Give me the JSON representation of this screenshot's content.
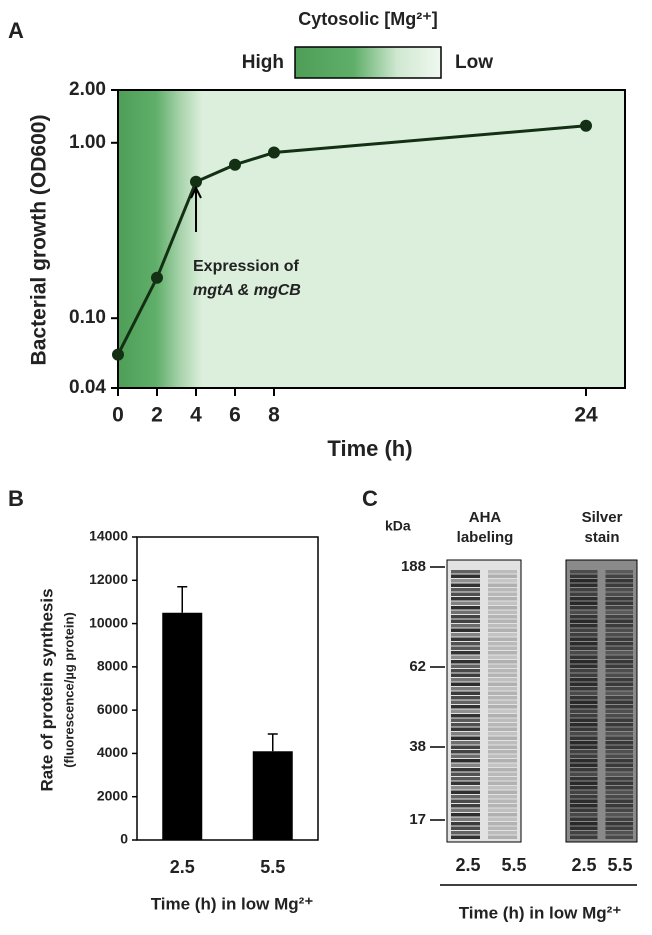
{
  "panel_labels": [
    "A",
    "B",
    "C"
  ],
  "chart_data": [
    {
      "type": "line",
      "title": "Cytosolic [Mg²⁺]",
      "legend_high": "High",
      "legend_low": "Low",
      "xlabel": "Time (h)",
      "ylabel": "Bacterial growth (OD600)",
      "x": [
        0,
        2,
        4,
        6,
        8,
        24
      ],
      "series": [
        {
          "color": "#143014",
          "values": [
            0.062,
            0.17,
            0.6,
            0.75,
            0.88,
            1.25
          ]
        }
      ],
      "xlim": [
        0,
        26
      ],
      "xticks": [
        0,
        2,
        4,
        6,
        8,
        24
      ],
      "ylim": [
        0.04,
        2
      ],
      "log_y": true,
      "yticks": [
        0.04,
        {
          "value": 0.1,
          "label": "0.10"
        },
        {
          "value": 1,
          "label": "1.00"
        },
        {
          "value": 2,
          "label": "2.00"
        }
      ],
      "annotation": [
        "Expression of",
        "mgtA & mgCB"
      ]
    },
    {
      "type": "bar",
      "xlabel": "Time (h) in low Mg²⁺",
      "ylabel": [
        "Rate of protein synthesis",
        "(fluorescence/µg protein)"
      ],
      "categories": [
        "2.5",
        "5.5"
      ],
      "values": [
        10500,
        4100
      ],
      "errors": [
        1200,
        800
      ],
      "color": "#000000",
      "ylim": [
        0,
        14000
      ],
      "yticks": [
        0,
        2000,
        4000,
        6000,
        8000,
        10000,
        12000,
        14000
      ]
    }
  ],
  "gel": {
    "unit": "kDa",
    "markers": [
      "188",
      "62",
      "38",
      "17"
    ],
    "headers": [
      [
        "AHA",
        "labeling"
      ],
      [
        "Silver",
        "stain"
      ]
    ],
    "lanes": [
      "2.5",
      "5.5",
      "2.5",
      "5.5"
    ],
    "xlabel": "Time (h) in low Mg²⁺"
  }
}
